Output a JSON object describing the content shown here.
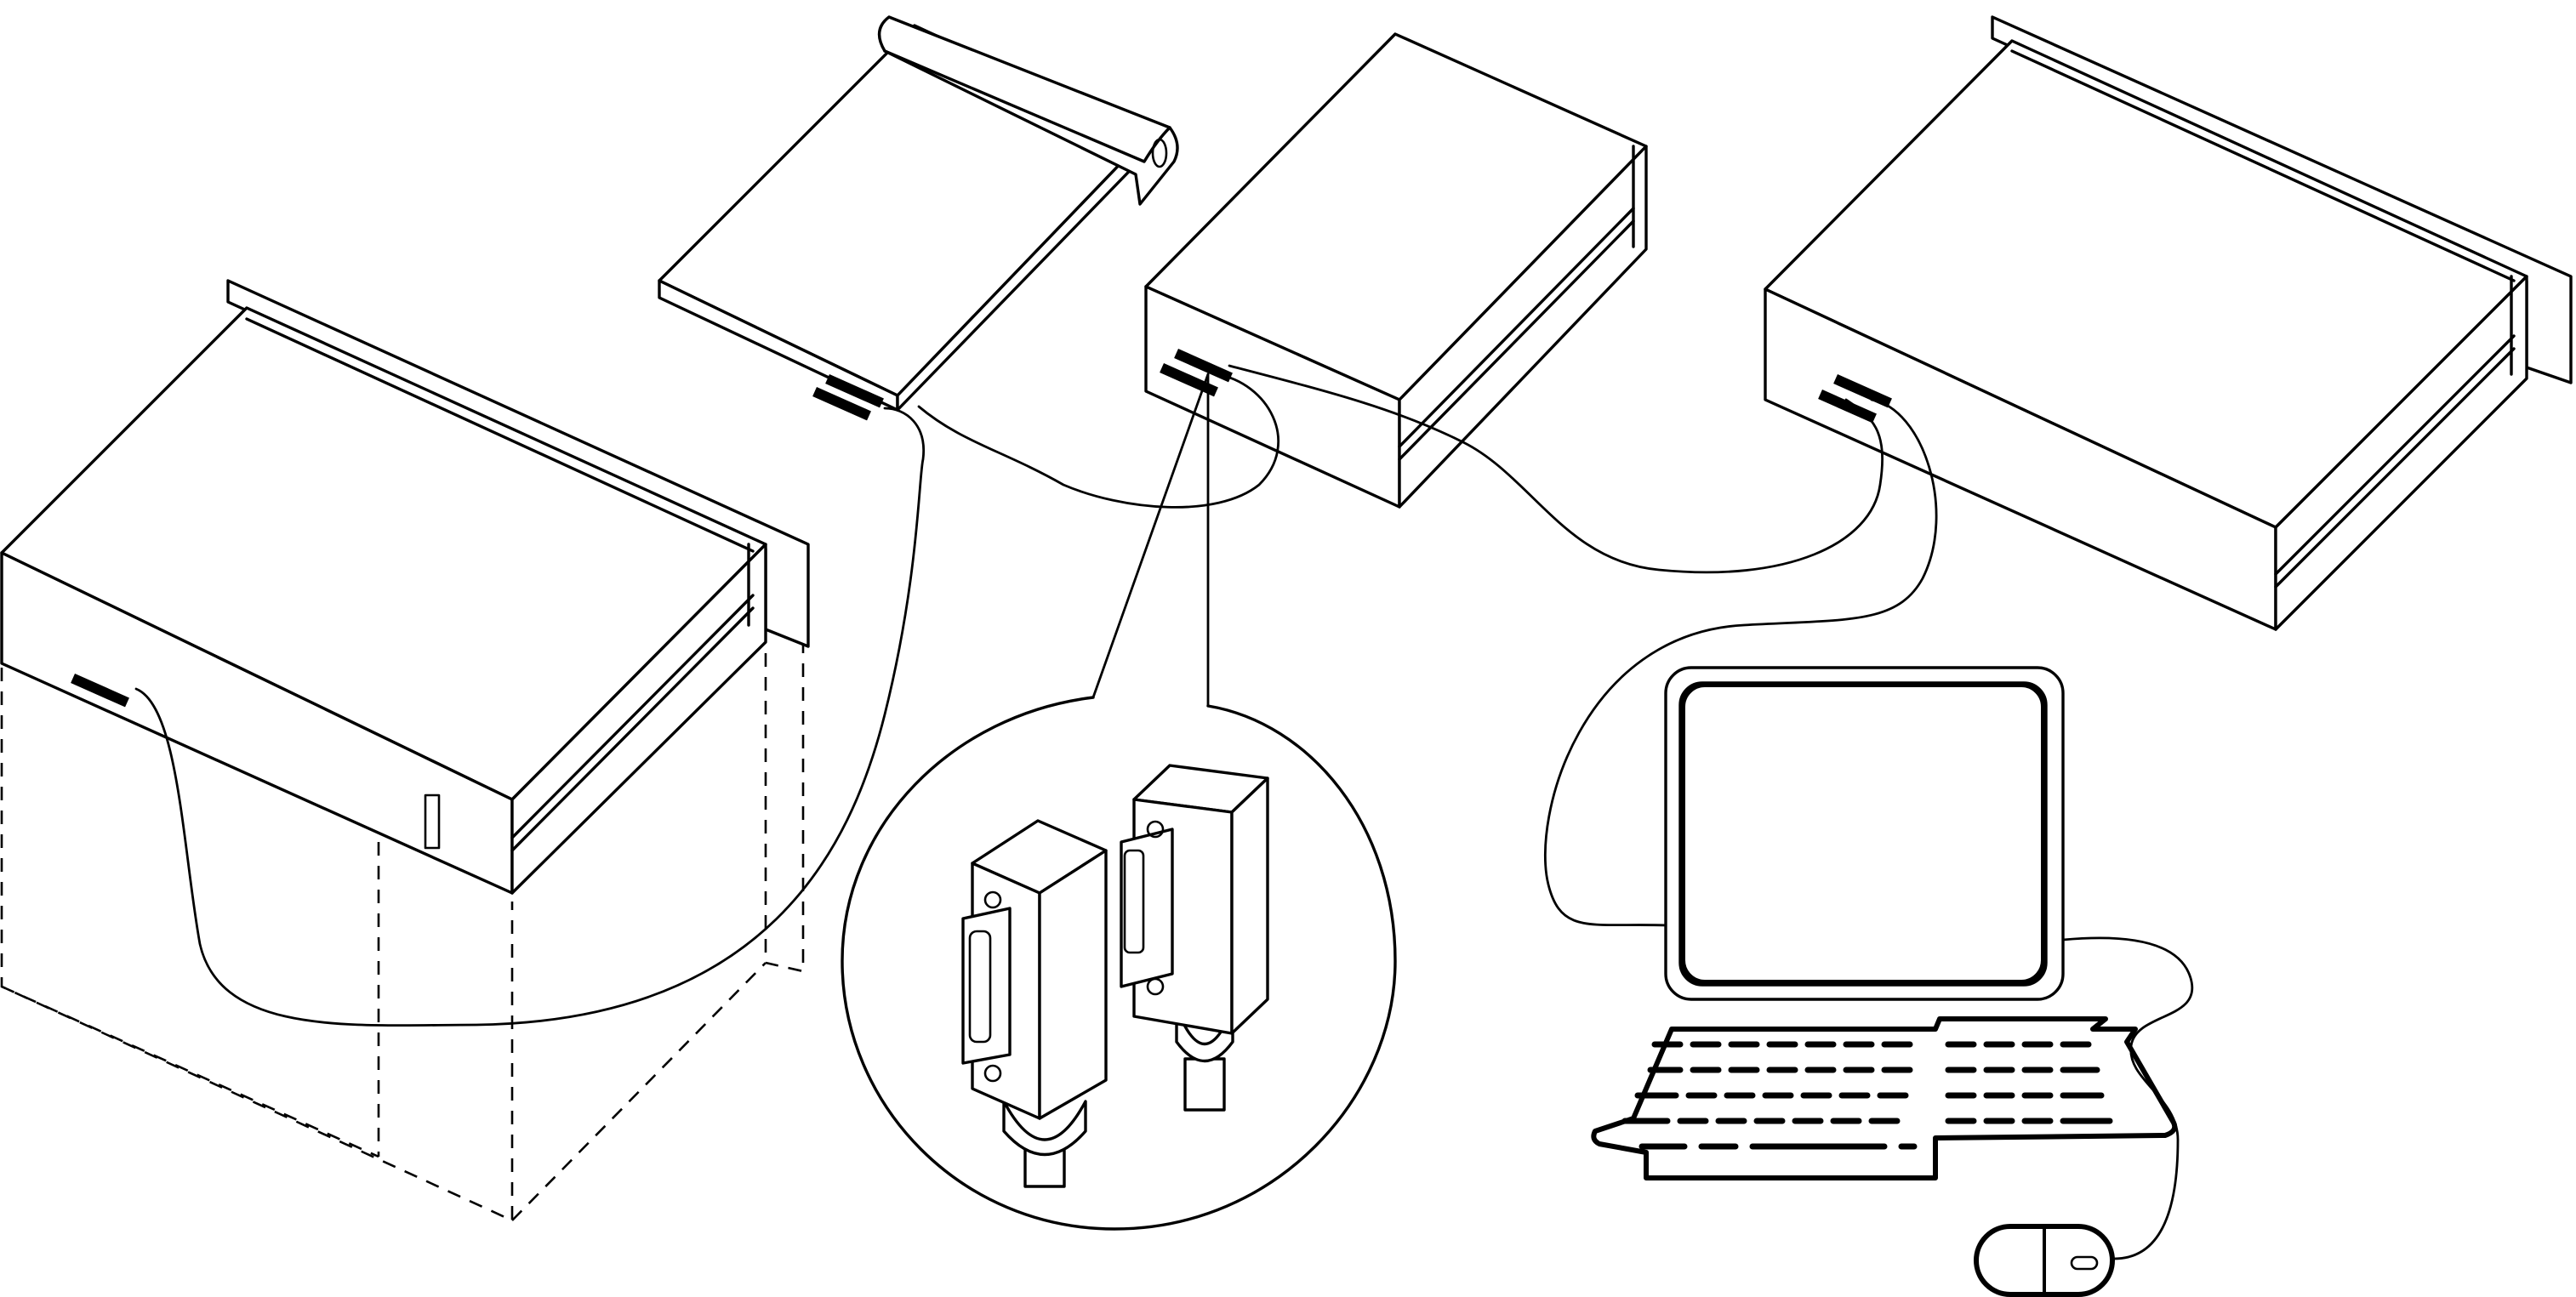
{
  "figure": {
    "kind": "line-art illustration",
    "stroke_color": "#000000",
    "background_color": "#ffffff",
    "devices": [
      {
        "name": "large-rack-unit-left"
      },
      {
        "name": "slim-unit-with-handle"
      },
      {
        "name": "compact-box-unit"
      },
      {
        "name": "large-rack-unit-right"
      },
      {
        "name": "desktop-computer"
      }
    ],
    "detail_callout": {
      "shows": "connector-pair"
    }
  }
}
